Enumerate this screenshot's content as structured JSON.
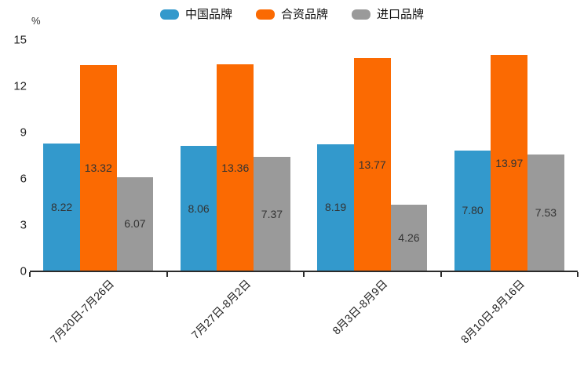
{
  "chart_data": {
    "type": "bar",
    "title": "",
    "ylabel": "%",
    "xlabel": "",
    "categories": [
      "7月20日-7月26日",
      "7月27日-8月2日",
      "8月3日-8月9日",
      "8月10日-8月16日"
    ],
    "series": [
      {
        "name": "中国品牌",
        "color": "#3399cc",
        "values": [
          8.22,
          8.06,
          8.19,
          7.8
        ]
      },
      {
        "name": "合资品牌",
        "color": "#fb6a02",
        "values": [
          13.32,
          13.36,
          13.77,
          13.97
        ]
      },
      {
        "name": "进口品牌",
        "color": "#9a9a9a",
        "values": [
          6.07,
          7.37,
          4.26,
          7.53
        ]
      }
    ],
    "value_label_format": "2-decimals",
    "value_label_position": "inside-center",
    "value_label_color": "#333333",
    "ylim": [
      0,
      15
    ],
    "yticks": [
      0,
      3,
      6,
      9,
      12,
      15
    ],
    "grid": false,
    "legend_position": "top",
    "axis_color": "#2b2b2b"
  }
}
